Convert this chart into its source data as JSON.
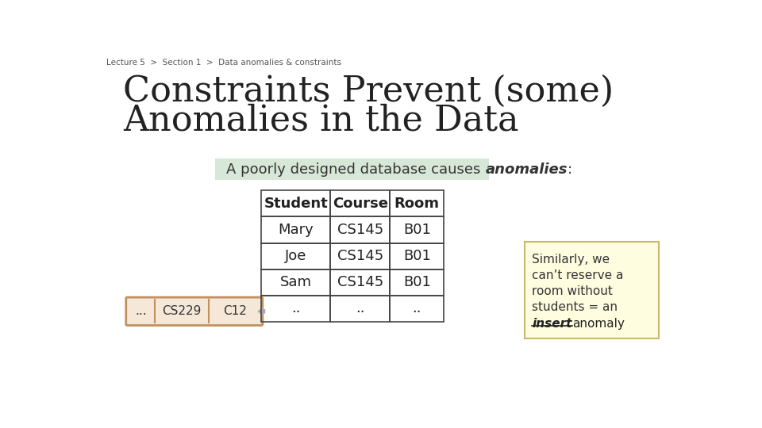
{
  "breadcrumb": "Lecture 5  >  Section 1  >  Data anomalies & constraints",
  "title_line1": "Constraints Prevent (some)",
  "title_line2": "Anomalies in the Data",
  "subtitle_normal": "A poorly designed database causes ",
  "subtitle_bold_italic": "anomalies",
  "subtitle_end": ":",
  "table_headers": [
    "Student",
    "Course",
    "Room"
  ],
  "table_rows": [
    [
      "Mary",
      "CS145",
      "B01"
    ],
    [
      "Joe",
      "CS145",
      "B01"
    ],
    [
      "Sam",
      "CS145",
      "B01"
    ],
    [
      "..",
      "..",
      ".."
    ]
  ],
  "input_box_labels": [
    "...",
    "CS229",
    "C12"
  ],
  "note_lines": [
    "Similarly, we",
    "can’t reserve a",
    "room without",
    "students = an"
  ],
  "slide_bg": "#ffffff",
  "breadcrumb_color": "#555555",
  "title_color": "#222222",
  "subtitle_bg": "#d8e8d8",
  "note_bg": "#fffde0",
  "note_border": "#c8b870",
  "input_box_bg": "#f5e8d8",
  "input_box_border": "#c09060"
}
